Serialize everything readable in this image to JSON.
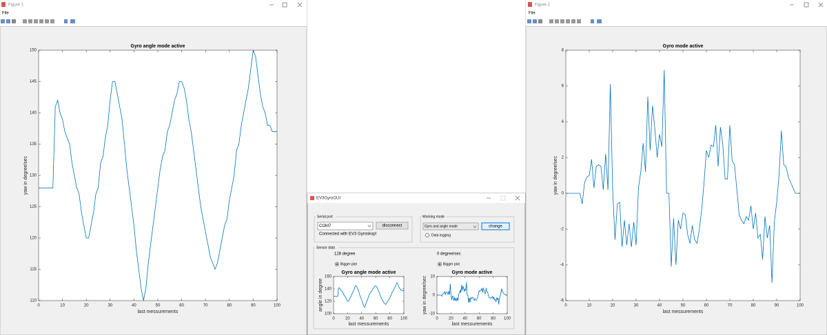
{
  "windows": {
    "figure1": {
      "title": "Figure 1",
      "menu": "File"
    },
    "figure2": {
      "title": "Figure 2",
      "menu": "File"
    },
    "gui": {
      "title": "EV3GyroGUI",
      "serial_panel": "Serial port",
      "port": "COM7",
      "disconnect_button": "disconnect",
      "status": "Connected with EV3 Gyroskop!",
      "mode_panel": "Working mode",
      "mode": "Gyro and angle mode",
      "change_button": "change",
      "logging_option": "Data logging",
      "sensor_panel": "Sensor data",
      "angle_readout": "128 degree",
      "rate_readout": "0 degree/sec",
      "bigger_plot_left": "Bigger plot",
      "bigger_plot_right": "Bigger plot"
    }
  },
  "chart_data": [
    {
      "type": "line",
      "title": "Gyro angle mode active",
      "x_label": "last messurements",
      "y_label": "yaw in degree/sec",
      "color": "#0072bd",
      "xlim": [
        0,
        100
      ],
      "ylim": [
        110,
        150
      ],
      "xticks": [
        0,
        10,
        20,
        30,
        40,
        50,
        60,
        70,
        80,
        90,
        100
      ],
      "yticks": [
        110,
        115,
        120,
        125,
        130,
        135,
        140,
        145,
        150
      ],
      "x": [
        0,
        1,
        2,
        3,
        4,
        5,
        6,
        7,
        8,
        9,
        10,
        11,
        12,
        13,
        14,
        15,
        16,
        17,
        18,
        19,
        20,
        21,
        22,
        23,
        24,
        25,
        26,
        27,
        28,
        29,
        30,
        31,
        32,
        33,
        34,
        35,
        36,
        37,
        38,
        39,
        40,
        41,
        42,
        43,
        44,
        45,
        46,
        47,
        48,
        49,
        50,
        51,
        52,
        53,
        54,
        55,
        56,
        57,
        58,
        59,
        60,
        61,
        62,
        63,
        64,
        65,
        66,
        67,
        68,
        69,
        70,
        71,
        72,
        73,
        74,
        75,
        76,
        77,
        78,
        79,
        80,
        81,
        82,
        83,
        84,
        85,
        86,
        87,
        88,
        89,
        90,
        91,
        92,
        93,
        94,
        95,
        96,
        97,
        98,
        99,
        100
      ],
      "values": [
        128,
        128,
        128,
        128,
        128,
        128,
        128,
        141,
        142,
        140,
        139,
        137,
        136,
        135,
        132,
        130,
        128,
        127,
        124,
        122,
        120,
        120,
        122,
        124,
        127,
        128,
        132,
        133,
        136,
        138,
        142,
        145,
        145,
        143,
        141,
        139,
        135,
        131,
        128,
        125,
        122,
        118,
        115,
        112,
        110,
        112,
        116,
        119,
        122,
        125,
        128,
        131,
        133,
        134,
        137,
        138,
        140,
        142,
        143,
        145,
        145,
        144,
        142,
        139,
        137,
        134,
        131,
        128,
        125,
        123,
        121,
        119,
        117,
        116,
        115,
        116,
        118,
        120,
        122,
        123,
        126,
        128,
        130,
        134,
        135,
        138,
        140,
        142,
        144,
        147,
        150,
        149,
        146,
        143,
        141,
        140,
        138,
        138,
        137,
        137,
        137
      ]
    },
    {
      "type": "line",
      "title": "Gyro mode active",
      "x_label": "last messurements",
      "y_label": "yaw in degree/sec",
      "color": "#0072bd",
      "xlim": [
        0,
        100
      ],
      "ylim": [
        -6,
        8
      ],
      "xticks": [
        0,
        10,
        20,
        30,
        40,
        50,
        60,
        70,
        80,
        90,
        100
      ],
      "yticks": [
        -6,
        -4,
        -2,
        0,
        2,
        4,
        6,
        8
      ],
      "x": [
        0,
        1,
        2,
        3,
        4,
        5,
        6,
        7,
        8,
        9,
        10,
        11,
        12,
        13,
        14,
        15,
        16,
        17,
        18,
        19,
        20,
        21,
        22,
        23,
        24,
        25,
        26,
        27,
        28,
        29,
        30,
        31,
        32,
        33,
        34,
        35,
        36,
        37,
        38,
        39,
        40,
        41,
        42,
        43,
        44,
        45,
        46,
        47,
        48,
        49,
        50,
        51,
        52,
        53,
        54,
        55,
        56,
        57,
        58,
        59,
        60,
        61,
        62,
        63,
        64,
        65,
        66,
        67,
        68,
        69,
        70,
        71,
        72,
        73,
        74,
        75,
        76,
        77,
        78,
        79,
        80,
        81,
        82,
        83,
        84,
        85,
        86,
        87,
        88,
        89,
        90,
        91,
        92,
        93,
        94,
        95,
        96,
        97,
        98,
        99,
        100
      ],
      "values": [
        0,
        0,
        0,
        0,
        0,
        0,
        0,
        -0.6,
        0.6,
        0.9,
        1.0,
        1.9,
        0.3,
        1.5,
        1.6,
        1.5,
        0.2,
        2.2,
        0.2,
        6.1,
        0.2,
        -2.6,
        -0.6,
        -0.5,
        -3.0,
        -1.5,
        -2.9,
        -1.7,
        -3.0,
        -1.6,
        -2.9,
        0.3,
        1.2,
        2.8,
        1.2,
        5.4,
        2.4,
        4.9,
        3.6,
        2.0,
        3.3,
        2.6,
        6.9,
        0.0,
        0.0,
        -4.1,
        -1.4,
        -4.0,
        -1.5,
        -2.0,
        -1.1,
        -1.2,
        -2.3,
        -2.8,
        -1.8,
        -2.6,
        -2.8,
        -2.0,
        -0.9,
        0.6,
        2.4,
        2.0,
        2.7,
        2.6,
        3.8,
        1.5,
        3.7,
        2.7,
        0.8,
        0.8,
        3.8,
        1.8,
        1.6,
        0.2,
        -1.2,
        -1.5,
        -1.7,
        -1.3,
        -1.5,
        -0.7,
        -2.0,
        -1.1,
        -2.5,
        -2.3,
        -3.7,
        -1.3,
        -2.5,
        -1.8,
        -5.0,
        -1.6,
        -0.5,
        1.0,
        3.5,
        1.6,
        1.5,
        0.9,
        0.6,
        0.3,
        0.0,
        0.0,
        0.0
      ]
    },
    {
      "type": "line",
      "title": "Gyro angle mode active",
      "x_label": "last messurements",
      "y_label": "angle in degree",
      "color": "#0072bd",
      "xlim": [
        0,
        100
      ],
      "ylim": [
        100,
        160
      ],
      "xticks": [
        0,
        20,
        40,
        60,
        80,
        100
      ],
      "yticks": [
        100,
        120,
        140,
        160
      ],
      "x": [
        0,
        1,
        2,
        3,
        4,
        5,
        6,
        7,
        8,
        9,
        10,
        11,
        12,
        13,
        14,
        15,
        16,
        17,
        18,
        19,
        20,
        21,
        22,
        23,
        24,
        25,
        26,
        27,
        28,
        29,
        30,
        31,
        32,
        33,
        34,
        35,
        36,
        37,
        38,
        39,
        40,
        41,
        42,
        43,
        44,
        45,
        46,
        47,
        48,
        49,
        50,
        51,
        52,
        53,
        54,
        55,
        56,
        57,
        58,
        59,
        60,
        61,
        62,
        63,
        64,
        65,
        66,
        67,
        68,
        69,
        70,
        71,
        72,
        73,
        74,
        75,
        76,
        77,
        78,
        79,
        80,
        81,
        82,
        83,
        84,
        85,
        86,
        87,
        88,
        89,
        90,
        91,
        92,
        93,
        94,
        95,
        96,
        97,
        98,
        99,
        100
      ],
      "values": [
        128,
        128,
        128,
        128,
        128,
        128,
        128,
        141,
        142,
        140,
        139,
        137,
        136,
        135,
        132,
        130,
        128,
        127,
        124,
        122,
        120,
        120,
        122,
        124,
        127,
        128,
        132,
        133,
        136,
        138,
        142,
        145,
        145,
        143,
        141,
        139,
        135,
        131,
        128,
        125,
        122,
        118,
        115,
        112,
        110,
        112,
        116,
        119,
        122,
        125,
        128,
        131,
        133,
        134,
        137,
        138,
        140,
        142,
        143,
        145,
        145,
        144,
        142,
        139,
        137,
        134,
        131,
        128,
        125,
        123,
        121,
        119,
        117,
        116,
        115,
        116,
        118,
        120,
        122,
        123,
        126,
        128,
        130,
        134,
        135,
        138,
        140,
        142,
        144,
        147,
        150,
        149,
        146,
        143,
        141,
        140,
        138,
        138,
        137,
        137,
        137
      ]
    },
    {
      "type": "line",
      "title": "Gyro mode active",
      "x_label": "last messurements",
      "y_label": "yaw in degree/sec",
      "color": "#0072bd",
      "xlim": [
        0,
        100
      ],
      "ylim": [
        -10,
        10
      ],
      "xticks": [
        0,
        20,
        40,
        60,
        80,
        100
      ],
      "yticks": [
        -10,
        0,
        10
      ],
      "x": [
        0,
        1,
        2,
        3,
        4,
        5,
        6,
        7,
        8,
        9,
        10,
        11,
        12,
        13,
        14,
        15,
        16,
        17,
        18,
        19,
        20,
        21,
        22,
        23,
        24,
        25,
        26,
        27,
        28,
        29,
        30,
        31,
        32,
        33,
        34,
        35,
        36,
        37,
        38,
        39,
        40,
        41,
        42,
        43,
        44,
        45,
        46,
        47,
        48,
        49,
        50,
        51,
        52,
        53,
        54,
        55,
        56,
        57,
        58,
        59,
        60,
        61,
        62,
        63,
        64,
        65,
        66,
        67,
        68,
        69,
        70,
        71,
        72,
        73,
        74,
        75,
        76,
        77,
        78,
        79,
        80,
        81,
        82,
        83,
        84,
        85,
        86,
        87,
        88,
        89,
        90,
        91,
        92,
        93,
        94,
        95,
        96,
        97,
        98,
        99,
        100
      ],
      "values": [
        0,
        0,
        0,
        0,
        0,
        0,
        0,
        -0.6,
        0.6,
        0.9,
        1.0,
        1.9,
        0.3,
        1.5,
        1.6,
        1.5,
        0.2,
        2.2,
        0.2,
        6.1,
        0.2,
        -2.6,
        -0.6,
        -0.5,
        -3.0,
        -1.5,
        -2.9,
        -1.7,
        -3.0,
        -1.6,
        -2.9,
        0.3,
        1.2,
        2.8,
        1.2,
        5.4,
        2.4,
        4.9,
        3.6,
        2.0,
        3.3,
        2.6,
        6.9,
        0.0,
        0.0,
        -4.1,
        -1.4,
        -4.0,
        -1.5,
        -2.0,
        -1.1,
        -1.2,
        -2.3,
        -2.8,
        -1.8,
        -2.6,
        -2.8,
        -2.0,
        -0.9,
        0.6,
        2.4,
        2.0,
        2.7,
        2.6,
        3.8,
        1.5,
        3.7,
        2.7,
        0.8,
        0.8,
        3.8,
        1.8,
        1.6,
        0.2,
        -1.2,
        -1.5,
        -1.7,
        -1.3,
        -1.5,
        -0.7,
        -2.0,
        -1.1,
        -2.5,
        -2.3,
        -3.7,
        -1.3,
        -2.5,
        -1.8,
        -5.0,
        -1.6,
        -0.5,
        1.0,
        3.5,
        1.6,
        1.5,
        0.9,
        0.6,
        0.3,
        0.0,
        0.0,
        0.0
      ]
    }
  ]
}
